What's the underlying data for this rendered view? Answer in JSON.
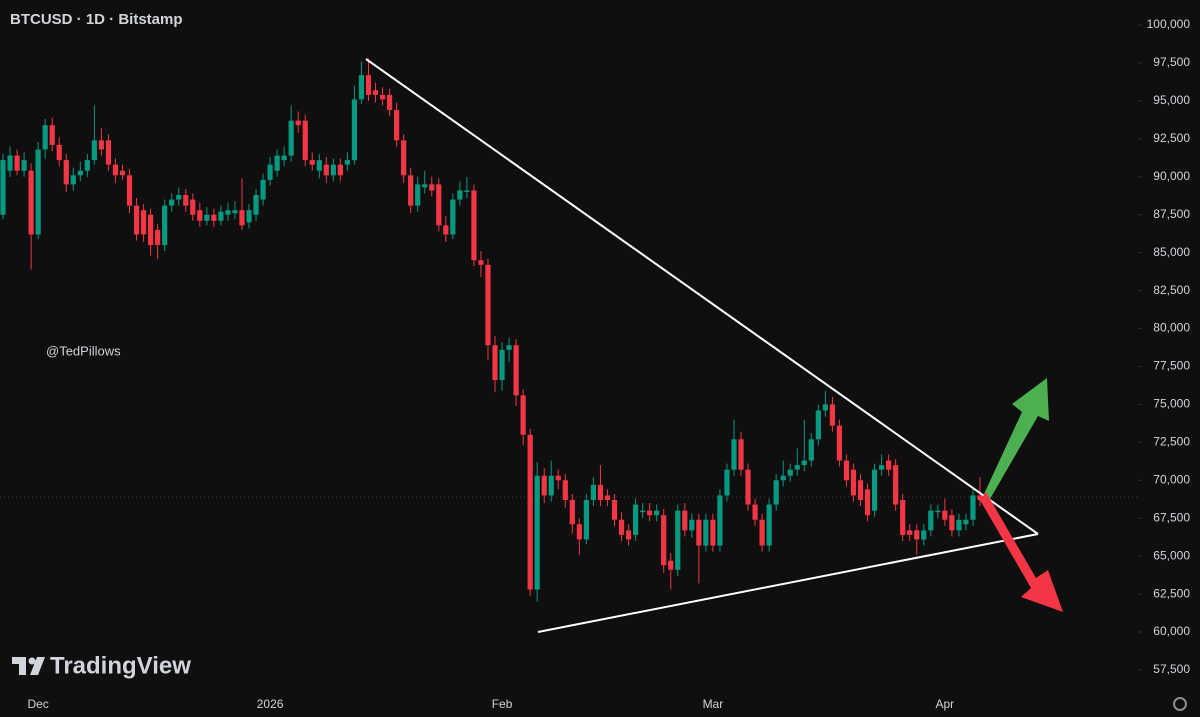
{
  "chart_data": {
    "type": "candlestick",
    "title": "BTCUSD · 1D · Bitstamp",
    "watermark": "@TedPillows",
    "brand": "TradingView",
    "up_color": "#089981",
    "down_color": "#f23645",
    "grid": false,
    "ylim": [
      56180,
      101650
    ],
    "yticks": [
      {
        "value": 57500,
        "label": "57,500"
      },
      {
        "value": 60000,
        "label": "60,000"
      },
      {
        "value": 62500,
        "label": "62,500"
      },
      {
        "value": 65000,
        "label": "65,000"
      },
      {
        "value": 67500,
        "label": "67,500"
      },
      {
        "value": 70000,
        "label": "70,000"
      },
      {
        "value": 72500,
        "label": "72,500"
      },
      {
        "value": 75000,
        "label": "75,000"
      },
      {
        "value": 77500,
        "label": "77,500"
      },
      {
        "value": 80000,
        "label": "80,000"
      },
      {
        "value": 82500,
        "label": "82,500"
      },
      {
        "value": 85000,
        "label": "85,000"
      },
      {
        "value": 87500,
        "label": "87,500"
      },
      {
        "value": 90000,
        "label": "90,000"
      },
      {
        "value": 92500,
        "label": "92,500"
      },
      {
        "value": 95000,
        "label": "95,000"
      },
      {
        "value": 97500,
        "label": "97,500"
      },
      {
        "value": 100000,
        "label": "100,000"
      }
    ],
    "categories": [
      null,
      null,
      null,
      null,
      null,
      "Dec",
      null,
      null,
      null,
      null,
      null,
      null,
      null,
      null,
      null,
      null,
      null,
      null,
      null,
      null,
      null,
      null,
      null,
      null,
      null,
      null,
      null,
      null,
      null,
      null,
      null,
      null,
      null,
      null,
      null,
      null,
      null,
      null,
      "2026",
      null,
      null,
      null,
      null,
      null,
      null,
      null,
      null,
      null,
      null,
      null,
      null,
      null,
      null,
      null,
      null,
      null,
      null,
      null,
      null,
      null,
      null,
      null,
      null,
      null,
      null,
      null,
      null,
      null,
      null,
      null,
      null,
      "Feb",
      null,
      null,
      null,
      null,
      null,
      null,
      null,
      null,
      null,
      null,
      null,
      null,
      null,
      null,
      null,
      null,
      null,
      null,
      null,
      null,
      null,
      null,
      null,
      null,
      null,
      null,
      null,
      null,
      null,
      "Mar",
      null,
      null,
      null,
      null,
      null,
      null,
      null,
      null,
      null,
      null,
      null,
      null,
      null,
      null,
      null,
      null,
      null,
      null,
      null,
      null,
      null,
      null,
      null,
      null,
      null,
      null,
      null,
      null,
      null,
      null,
      null,
      null,
      "Apr",
      null,
      null,
      null,
      null,
      null
    ],
    "open": [
      87500,
      90400,
      91400,
      90400,
      90400,
      86200,
      91800,
      93400,
      92100,
      91100,
      89500,
      90100,
      90400,
      91100,
      92400,
      92400,
      90800,
      90400,
      90100,
      88100,
      87800,
      87500,
      86500,
      85500,
      88100,
      88500,
      88800,
      88500,
      87800,
      87100,
      87500,
      87100,
      87500,
      87600,
      87800,
      87000,
      87500,
      88500,
      89800,
      90400,
      91100,
      91400,
      93700,
      93700,
      91100,
      90400,
      90800,
      90100,
      90800,
      90800,
      91100,
      95100,
      96700,
      95700,
      95400,
      95400,
      94400,
      92400,
      90100,
      88100,
      89300,
      89500,
      89500,
      86800,
      86200,
      88500,
      89000,
      89100,
      84500,
      84200,
      78900,
      76600,
      78600,
      78900,
      75600,
      73000,
      62800,
      70300,
      69000,
      70300,
      70000,
      68700,
      67100,
      66100,
      68700,
      69700,
      69000,
      68700,
      67400,
      66700,
      66400,
      67900,
      68000,
      67700,
      67700,
      64700,
      64100,
      68000,
      66700,
      67400,
      65700,
      67400,
      65700,
      69000,
      70700,
      72700,
      70700,
      68400,
      67400,
      65700,
      68400,
      70000,
      70300,
      70700,
      71000,
      71300,
      72700,
      74600,
      75000,
      73600,
      71300,
      70700,
      70000,
      69400,
      68000,
      70700,
      71300,
      71000,
      68700,
      66700,
      66700,
      66100,
      66700,
      67900,
      68000,
      67700,
      66700,
      67100,
      67400,
      69000
    ],
    "high": [
      91500,
      92000,
      91800,
      91600,
      90900,
      92300,
      93800,
      93900,
      92600,
      91500,
      90600,
      91000,
      91500,
      94700,
      93200,
      92800,
      91200,
      90800,
      90500,
      88600,
      88200,
      87900,
      86900,
      88500,
      88900,
      89300,
      89200,
      88900,
      88300,
      88000,
      87900,
      88100,
      88300,
      88400,
      89900,
      88200,
      89200,
      90200,
      91300,
      91800,
      92000,
      94700,
      94300,
      94100,
      91600,
      91500,
      91300,
      91200,
      91200,
      91600,
      96000,
      97600,
      97800,
      96200,
      95900,
      95800,
      94900,
      92800,
      90600,
      90000,
      90400,
      90000,
      89900,
      87400,
      88900,
      89700,
      90000,
      89500,
      85100,
      84600,
      79500,
      79100,
      79400,
      79300,
      76000,
      73400,
      71200,
      70800,
      71300,
      70700,
      70400,
      69100,
      67500,
      69100,
      70200,
      71000,
      69400,
      69100,
      67900,
      67100,
      68800,
      68500,
      68500,
      68400,
      68100,
      65200,
      68400,
      68500,
      67800,
      67800,
      67800,
      67800,
      69400,
      71100,
      74000,
      73200,
      71100,
      68800,
      67800,
      68800,
      70400,
      71300,
      71100,
      72100,
      74000,
      73100,
      75000,
      75900,
      75500,
      74000,
      71700,
      71100,
      70400,
      69800,
      71100,
      71700,
      71700,
      71400,
      69100,
      67100,
      67100,
      67100,
      68400,
      68400,
      68800,
      68100,
      67800,
      67800,
      69400,
      70200
    ],
    "low": [
      87200,
      90000,
      90100,
      90000,
      83900,
      85900,
      91200,
      91700,
      90700,
      89000,
      89100,
      89700,
      90000,
      90800,
      91400,
      90400,
      89600,
      89800,
      87600,
      85800,
      85700,
      84800,
      84600,
      85100,
      87700,
      88100,
      87700,
      87100,
      86700,
      86800,
      86700,
      86800,
      87100,
      87200,
      86500,
      86600,
      87100,
      88100,
      89400,
      90000,
      90700,
      91000,
      92900,
      90700,
      90400,
      89900,
      89600,
      89700,
      89700,
      90400,
      90800,
      94800,
      95000,
      94900,
      94700,
      94000,
      92000,
      89600,
      87600,
      87700,
      88900,
      88700,
      86400,
      85700,
      85900,
      88100,
      88600,
      84100,
      83400,
      77900,
      75800,
      75900,
      77800,
      74900,
      72300,
      62400,
      62000,
      68500,
      68600,
      69400,
      68200,
      66500,
      65100,
      65800,
      68300,
      68300,
      68300,
      67000,
      66000,
      65700,
      66000,
      67500,
      67300,
      67300,
      63900,
      62800,
      63700,
      66300,
      66200,
      63200,
      65300,
      65300,
      65300,
      68600,
      70300,
      70300,
      68000,
      67000,
      65300,
      65300,
      68000,
      69600,
      69900,
      70300,
      70600,
      70900,
      72300,
      74200,
      73200,
      70900,
      69600,
      68600,
      68300,
      67300,
      67600,
      70300,
      70300,
      68000,
      66000,
      66000,
      65100,
      65700,
      66300,
      67500,
      67000,
      66300,
      66300,
      66700,
      67000,
      68300
    ],
    "close": [
      91100,
      91400,
      90400,
      91100,
      86200,
      91800,
      93400,
      92100,
      91100,
      89500,
      90100,
      90400,
      91100,
      92400,
      91800,
      90800,
      90100,
      90100,
      88100,
      86200,
      86200,
      85500,
      85500,
      88100,
      88500,
      88800,
      88100,
      87500,
      87100,
      87500,
      87100,
      87700,
      87800,
      87800,
      86800,
      87800,
      88800,
      89800,
      90800,
      91400,
      91400,
      93700,
      93400,
      91100,
      90800,
      91100,
      90100,
      90800,
      90100,
      91100,
      95100,
      96700,
      95400,
      95400,
      95100,
      94400,
      92400,
      90100,
      88100,
      89500,
      89500,
      89100,
      86800,
      86200,
      88500,
      89100,
      89100,
      84500,
      84200,
      78900,
      76600,
      78600,
      78900,
      75600,
      73000,
      62800,
      70300,
      69000,
      70300,
      70000,
      68700,
      67100,
      66100,
      68700,
      69700,
      68700,
      68700,
      67400,
      66400,
      66100,
      68400,
      68000,
      67700,
      68000,
      64400,
      64100,
      68000,
      66700,
      67400,
      65700,
      67400,
      65700,
      69000,
      70700,
      72700,
      70700,
      68400,
      67400,
      65700,
      68400,
      70000,
      70300,
      70700,
      71000,
      71300,
      72700,
      74600,
      75000,
      73600,
      71300,
      70000,
      69000,
      68700,
      67700,
      70700,
      71000,
      70700,
      68400,
      66400,
      66400,
      66100,
      66700,
      68000,
      68000,
      67400,
      66700,
      67400,
      67400,
      69000,
      68700
    ]
  }
}
